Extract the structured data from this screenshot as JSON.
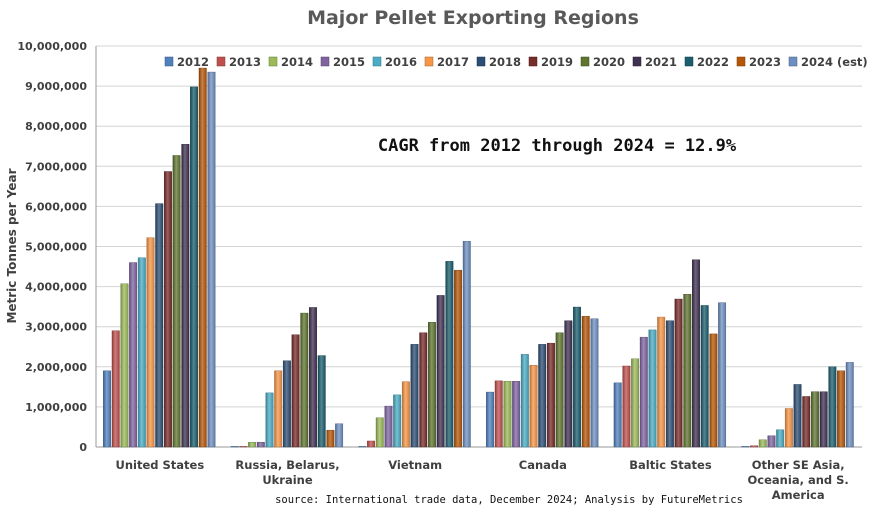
{
  "chart_data": {
    "type": "bar",
    "title": "Major Pellet Exporting Regions",
    "ylabel": "Metric Tonnes per Year",
    "xlabel": "",
    "ylim": [
      0,
      10000000
    ],
    "yticks": [
      0,
      1000000,
      2000000,
      3000000,
      4000000,
      5000000,
      6000000,
      7000000,
      8000000,
      9000000,
      10000000
    ],
    "ytick_labels": [
      "0",
      "1,000,000",
      "2,000,000",
      "3,000,000",
      "4,000,000",
      "5,000,000",
      "6,000,000",
      "7,000,000",
      "8,000,000",
      "9,000,000",
      "10,000,000"
    ],
    "grid": true,
    "legend_position": "top-right",
    "categories": [
      [
        "United States"
      ],
      [
        "Russia, Belarus,",
        "Ukraine"
      ],
      [
        "Vietnam"
      ],
      [
        "Canada"
      ],
      [
        "Baltic States"
      ],
      [
        "Other SE Asia,",
        "Oceania, and S.",
        "America"
      ]
    ],
    "series": [
      {
        "name": "2012",
        "color": "#4F81BD",
        "values": [
          1900000,
          0,
          0,
          1370000,
          1600000,
          0
        ]
      },
      {
        "name": "2013",
        "color": "#C0504D",
        "values": [
          2900000,
          0,
          150000,
          1650000,
          2020000,
          30000
        ]
      },
      {
        "name": "2014",
        "color": "#9BBB59",
        "values": [
          4070000,
          120000,
          730000,
          1640000,
          2200000,
          180000
        ]
      },
      {
        "name": "2015",
        "color": "#8064A2",
        "values": [
          4600000,
          120000,
          1020000,
          1640000,
          2740000,
          280000
        ]
      },
      {
        "name": "2016",
        "color": "#4BACC6",
        "values": [
          4720000,
          1350000,
          1300000,
          2310000,
          2920000,
          430000
        ]
      },
      {
        "name": "2017",
        "color": "#F79646",
        "values": [
          5220000,
          1900000,
          1630000,
          2040000,
          3240000,
          960000
        ]
      },
      {
        "name": "2018",
        "color": "#2C4D75",
        "values": [
          6070000,
          2150000,
          2560000,
          2560000,
          3150000,
          1560000
        ]
      },
      {
        "name": "2019",
        "color": "#772C2A",
        "values": [
          6870000,
          2800000,
          2850000,
          2590000,
          3690000,
          1260000
        ]
      },
      {
        "name": "2020",
        "color": "#5F7530",
        "values": [
          7270000,
          3340000,
          3110000,
          2850000,
          3810000,
          1380000
        ]
      },
      {
        "name": "2021",
        "color": "#403152",
        "values": [
          7550000,
          3480000,
          3780000,
          3150000,
          4670000,
          1380000
        ]
      },
      {
        "name": "2022",
        "color": "#1B5E6E",
        "values": [
          8980000,
          2280000,
          4630000,
          3490000,
          3530000,
          2000000
        ]
      },
      {
        "name": "2023",
        "color": "#B65708",
        "values": [
          9450000,
          420000,
          4410000,
          3260000,
          2820000,
          1900000
        ]
      },
      {
        "name": "2024 (est)",
        "color": "#6E8FC2",
        "values": [
          9350000,
          580000,
          5130000,
          3200000,
          3600000,
          2110000
        ]
      }
    ],
    "annotation": "CAGR from 2012 through 2024 = 12.9%",
    "source": "source: International trade data, December 2024; Analysis by FutureMetrics"
  }
}
